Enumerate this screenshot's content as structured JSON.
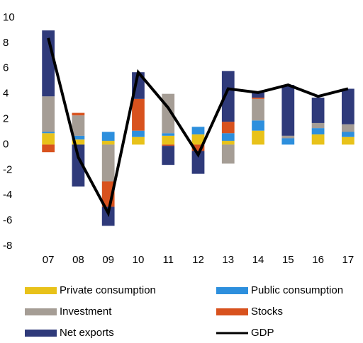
{
  "chart_data": {
    "type": "bar",
    "categories": [
      "07",
      "08",
      "09",
      "10",
      "11",
      "12",
      "13",
      "14",
      "15",
      "16",
      "17"
    ],
    "series": [
      {
        "name": "Private consumption",
        "color": "#e8c21a",
        "values": [
          0.9,
          0.4,
          0.3,
          0.6,
          0.7,
          0.8,
          0.3,
          1.1,
          0,
          0.8,
          0.6
        ]
      },
      {
        "name": "Public consumption",
        "color": "#2d8fdd",
        "values": [
          0.1,
          0.3,
          0.7,
          0.5,
          0.2,
          0.6,
          0.6,
          0.8,
          0.5,
          0.5,
          0.4
        ]
      },
      {
        "name": "Investment",
        "color": "#a59d95",
        "values": [
          2.8,
          1.6,
          -2.9,
          0,
          3.1,
          0,
          -1.5,
          1.7,
          0.2,
          0.4,
          0.6
        ]
      },
      {
        "name": "Stocks",
        "color": "#d8521e",
        "values": [
          -0.6,
          0.2,
          -2.0,
          2.5,
          -0.1,
          -0.5,
          0.9,
          0.1,
          0,
          0,
          0
        ]
      },
      {
        "name": "Net exports",
        "color": "#2f3a7a",
        "values": [
          5.2,
          -3.3,
          -1.5,
          2.1,
          -1.5,
          -1.8,
          4.0,
          0.4,
          4.0,
          2.0,
          2.8
        ]
      },
      {
        "name": "GDP",
        "color": "#000000",
        "type": "line",
        "values": [
          8.4,
          -1.0,
          -5.4,
          5.7,
          2.9,
          -0.8,
          4.4,
          4.1,
          4.7,
          3.8,
          4.4
        ]
      }
    ],
    "ylim": [
      -8,
      10
    ],
    "yticks": [
      -8,
      -6,
      -4,
      -2,
      0,
      2,
      4,
      6,
      8,
      10
    ],
    "grid": false
  }
}
